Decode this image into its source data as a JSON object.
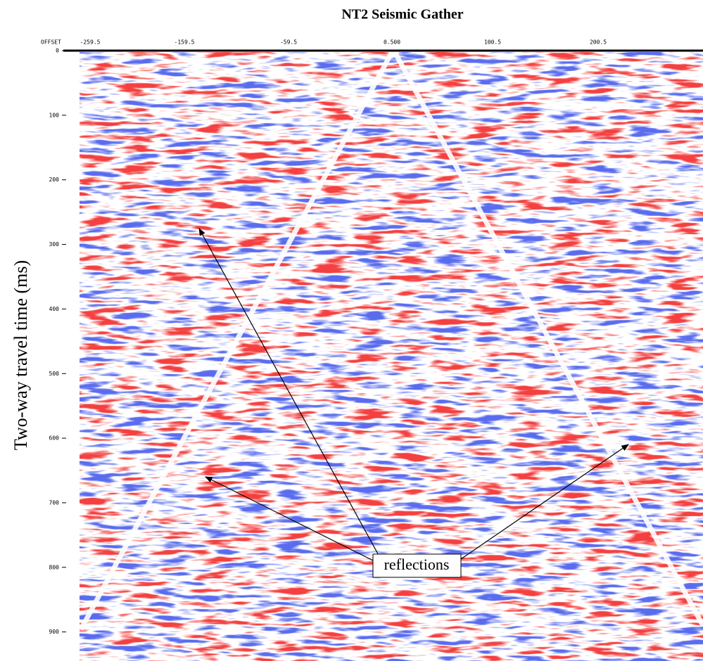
{
  "chart_data": {
    "type": "seismic",
    "title": "NT2 Seismic Gather",
    "ylabel": "Two-way travel time (ms)",
    "xlabel": "OFFSET",
    "xtick_labels": [
      "-259.5",
      "-159.5",
      "-59.5",
      "0.500",
      "100.5",
      "200.5"
    ],
    "ylim": [
      0,
      945
    ],
    "yticks": [
      0,
      100,
      200,
      300,
      400,
      500,
      600,
      700,
      800,
      900
    ],
    "annotation": "reflections"
  }
}
